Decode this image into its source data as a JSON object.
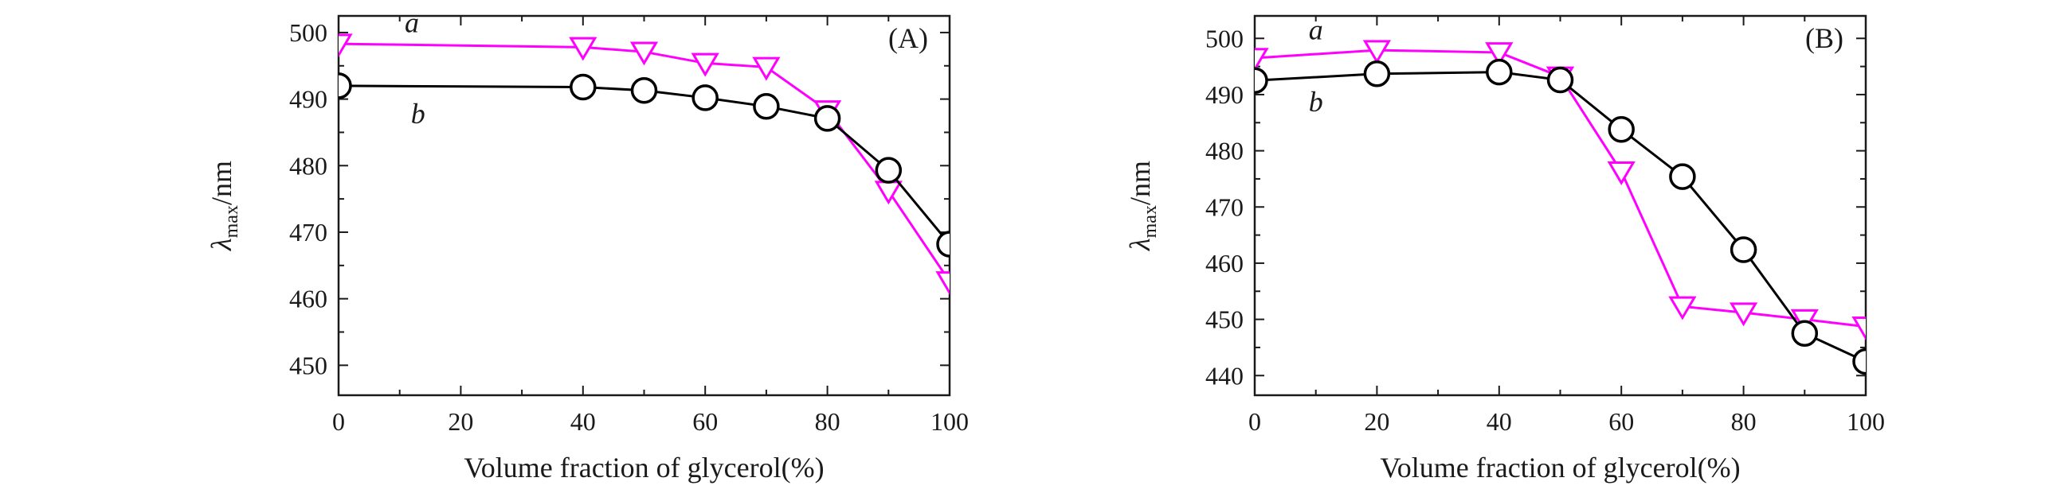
{
  "chart_data": [
    {
      "type": "line",
      "panel_label": "(A)",
      "xlabel": "Volume fraction of glycerol(%)",
      "ylabel_main": "λ",
      "ylabel_sub": "max",
      "ylabel_unit": "/nm",
      "xlim": [
        0,
        100
      ],
      "ylim": [
        445.5,
        502.5
      ],
      "xticks": [
        0,
        20,
        40,
        60,
        80,
        100
      ],
      "yticks": [
        450,
        460,
        470,
        480,
        490,
        500
      ],
      "grid": false,
      "series": [
        {
          "name": "a",
          "color": "#ff00ff",
          "marker": "triangle-down",
          "x": [
            0,
            40,
            50,
            60,
            70,
            80,
            90,
            100
          ],
          "y": [
            498.3,
            497.8,
            497.1,
            495.4,
            494.8,
            488.3,
            476.2,
            462.6
          ],
          "label_at": [
            12,
            501.5
          ]
        },
        {
          "name": "b",
          "color": "#000000",
          "marker": "circle",
          "x": [
            0,
            40,
            50,
            60,
            70,
            80,
            90,
            100
          ],
          "y": [
            492.0,
            491.8,
            491.3,
            490.2,
            488.9,
            487.1,
            479.3,
            468.2
          ],
          "label_at": [
            13,
            487.8
          ]
        }
      ]
    },
    {
      "type": "line",
      "panel_label": "(B)",
      "xlabel": "Volume fraction of glycerol(%)",
      "ylabel_main": "λ",
      "ylabel_sub": "max",
      "ylabel_unit": "/nm",
      "xlim": [
        0,
        100
      ],
      "ylim": [
        436.5,
        504
      ],
      "xticks": [
        0,
        20,
        40,
        60,
        80,
        100
      ],
      "yticks": [
        440,
        450,
        460,
        470,
        480,
        490,
        500
      ],
      "grid": false,
      "series": [
        {
          "name": "a",
          "color": "#ff00ff",
          "marker": "triangle-down",
          "x": [
            0,
            20,
            40,
            50,
            60,
            70,
            80,
            90,
            100
          ],
          "y": [
            496.5,
            497.9,
            497.5,
            493.2,
            476.3,
            452.3,
            451.2,
            450.0,
            448.7
          ],
          "label_at": [
            10,
            501.5
          ]
        },
        {
          "name": "b",
          "color": "#000000",
          "marker": "circle",
          "x": [
            0,
            20,
            40,
            50,
            60,
            70,
            80,
            90,
            100
          ],
          "y": [
            492.5,
            493.7,
            494.0,
            492.6,
            483.8,
            475.4,
            462.4,
            447.5,
            442.5
          ],
          "label_at": [
            10,
            488.7
          ]
        }
      ]
    }
  ]
}
